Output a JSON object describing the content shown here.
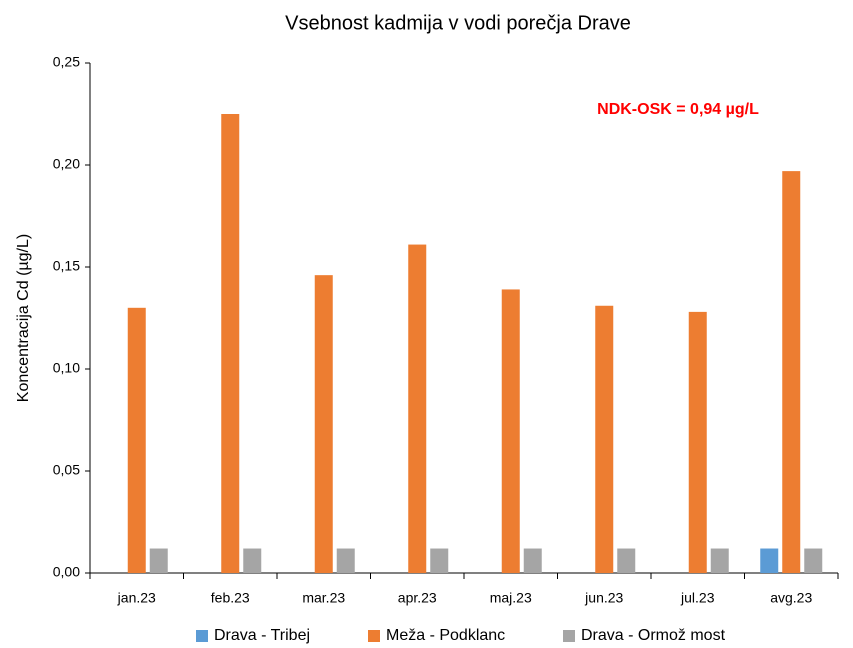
{
  "chart_data": {
    "type": "bar",
    "title": "Vsebnost kadmija v vodi porečja Drave",
    "y_label": "Koncentracija Cd (µg/L)",
    "annotation": "NDK-OSK = 0,94 µg/L",
    "categories": [
      "jan.23",
      "feb.23",
      "mar.23",
      "apr.23",
      "maj.23",
      "jun.23",
      "jul.23",
      "avg.23"
    ],
    "series": [
      {
        "name": "Drava - Tribej",
        "color": "#5b9bd5",
        "values": [
          null,
          null,
          null,
          null,
          null,
          null,
          null,
          0.012
        ]
      },
      {
        "name": "Meža - Podklanc",
        "color": "#ed7d31",
        "values": [
          0.13,
          0.225,
          0.146,
          0.161,
          0.139,
          0.131,
          0.128,
          0.197
        ]
      },
      {
        "name": "Drava - Ormož most",
        "color": "#a5a5a5",
        "values": [
          0.012,
          0.012,
          0.012,
          0.012,
          0.012,
          0.012,
          0.012,
          0.012
        ]
      }
    ],
    "ylim": [
      0,
      0.25
    ],
    "yticks": [
      {
        "value": 0,
        "label": "0,00"
      },
      {
        "value": 0.05,
        "label": "0,05"
      },
      {
        "value": 0.1,
        "label": "0,10"
      },
      {
        "value": 0.15,
        "label": "0,15"
      },
      {
        "value": 0.2,
        "label": "0,20"
      },
      {
        "value": 0.25,
        "label": "0,25"
      }
    ],
    "grid": false,
    "legend": "bottom"
  }
}
